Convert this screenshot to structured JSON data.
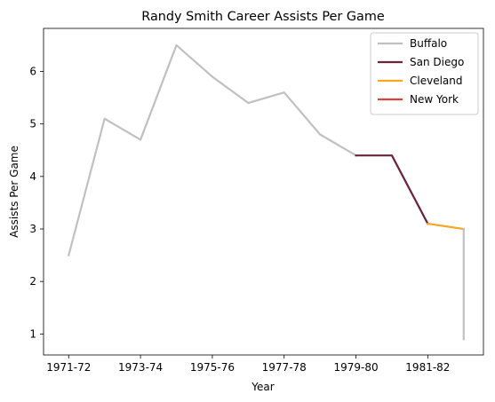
{
  "chart_data": {
    "type": "line",
    "title": "Randy Smith  Career Assists Per Game",
    "xlabel": "Year",
    "ylabel": "Assists Per Game",
    "x_tick_labels": [
      "1971-72",
      "1973-74",
      "1975-76",
      "1977-78",
      "1979-80",
      "1981-82"
    ],
    "x_tick_positions": [
      0,
      2,
      4,
      6,
      8,
      10
    ],
    "y_ticks": [
      1,
      2,
      3,
      4,
      5,
      6
    ],
    "xlim": [
      -0.7,
      11.55
    ],
    "ylim": [
      0.6,
      6.82
    ],
    "grid": false,
    "legend_position": "top-right",
    "series": [
      {
        "name": "Buffalo",
        "color": "#c0c0c0",
        "x": [
          0,
          1,
          2,
          3,
          4,
          5,
          6,
          7,
          8
        ],
        "y": [
          2.5,
          5.1,
          4.7,
          6.5,
          5.9,
          5.4,
          5.6,
          4.8,
          4.4
        ]
      },
      {
        "name": "San Diego",
        "color": "#6b2342",
        "x": [
          8,
          9,
          10
        ],
        "y": [
          4.4,
          4.4,
          3.1
        ]
      },
      {
        "name": "Cleveland",
        "color": "#f5a623",
        "x": [
          10,
          11
        ],
        "y": [
          3.1,
          3.0
        ]
      },
      {
        "name": "New York",
        "color": "#d7443f",
        "x": [
          11
        ],
        "y": [
          3.0
        ]
      },
      {
        "name": "",
        "color": "#c0c0c0",
        "x": [
          11,
          11
        ],
        "y": [
          3.0,
          0.9
        ]
      }
    ]
  }
}
